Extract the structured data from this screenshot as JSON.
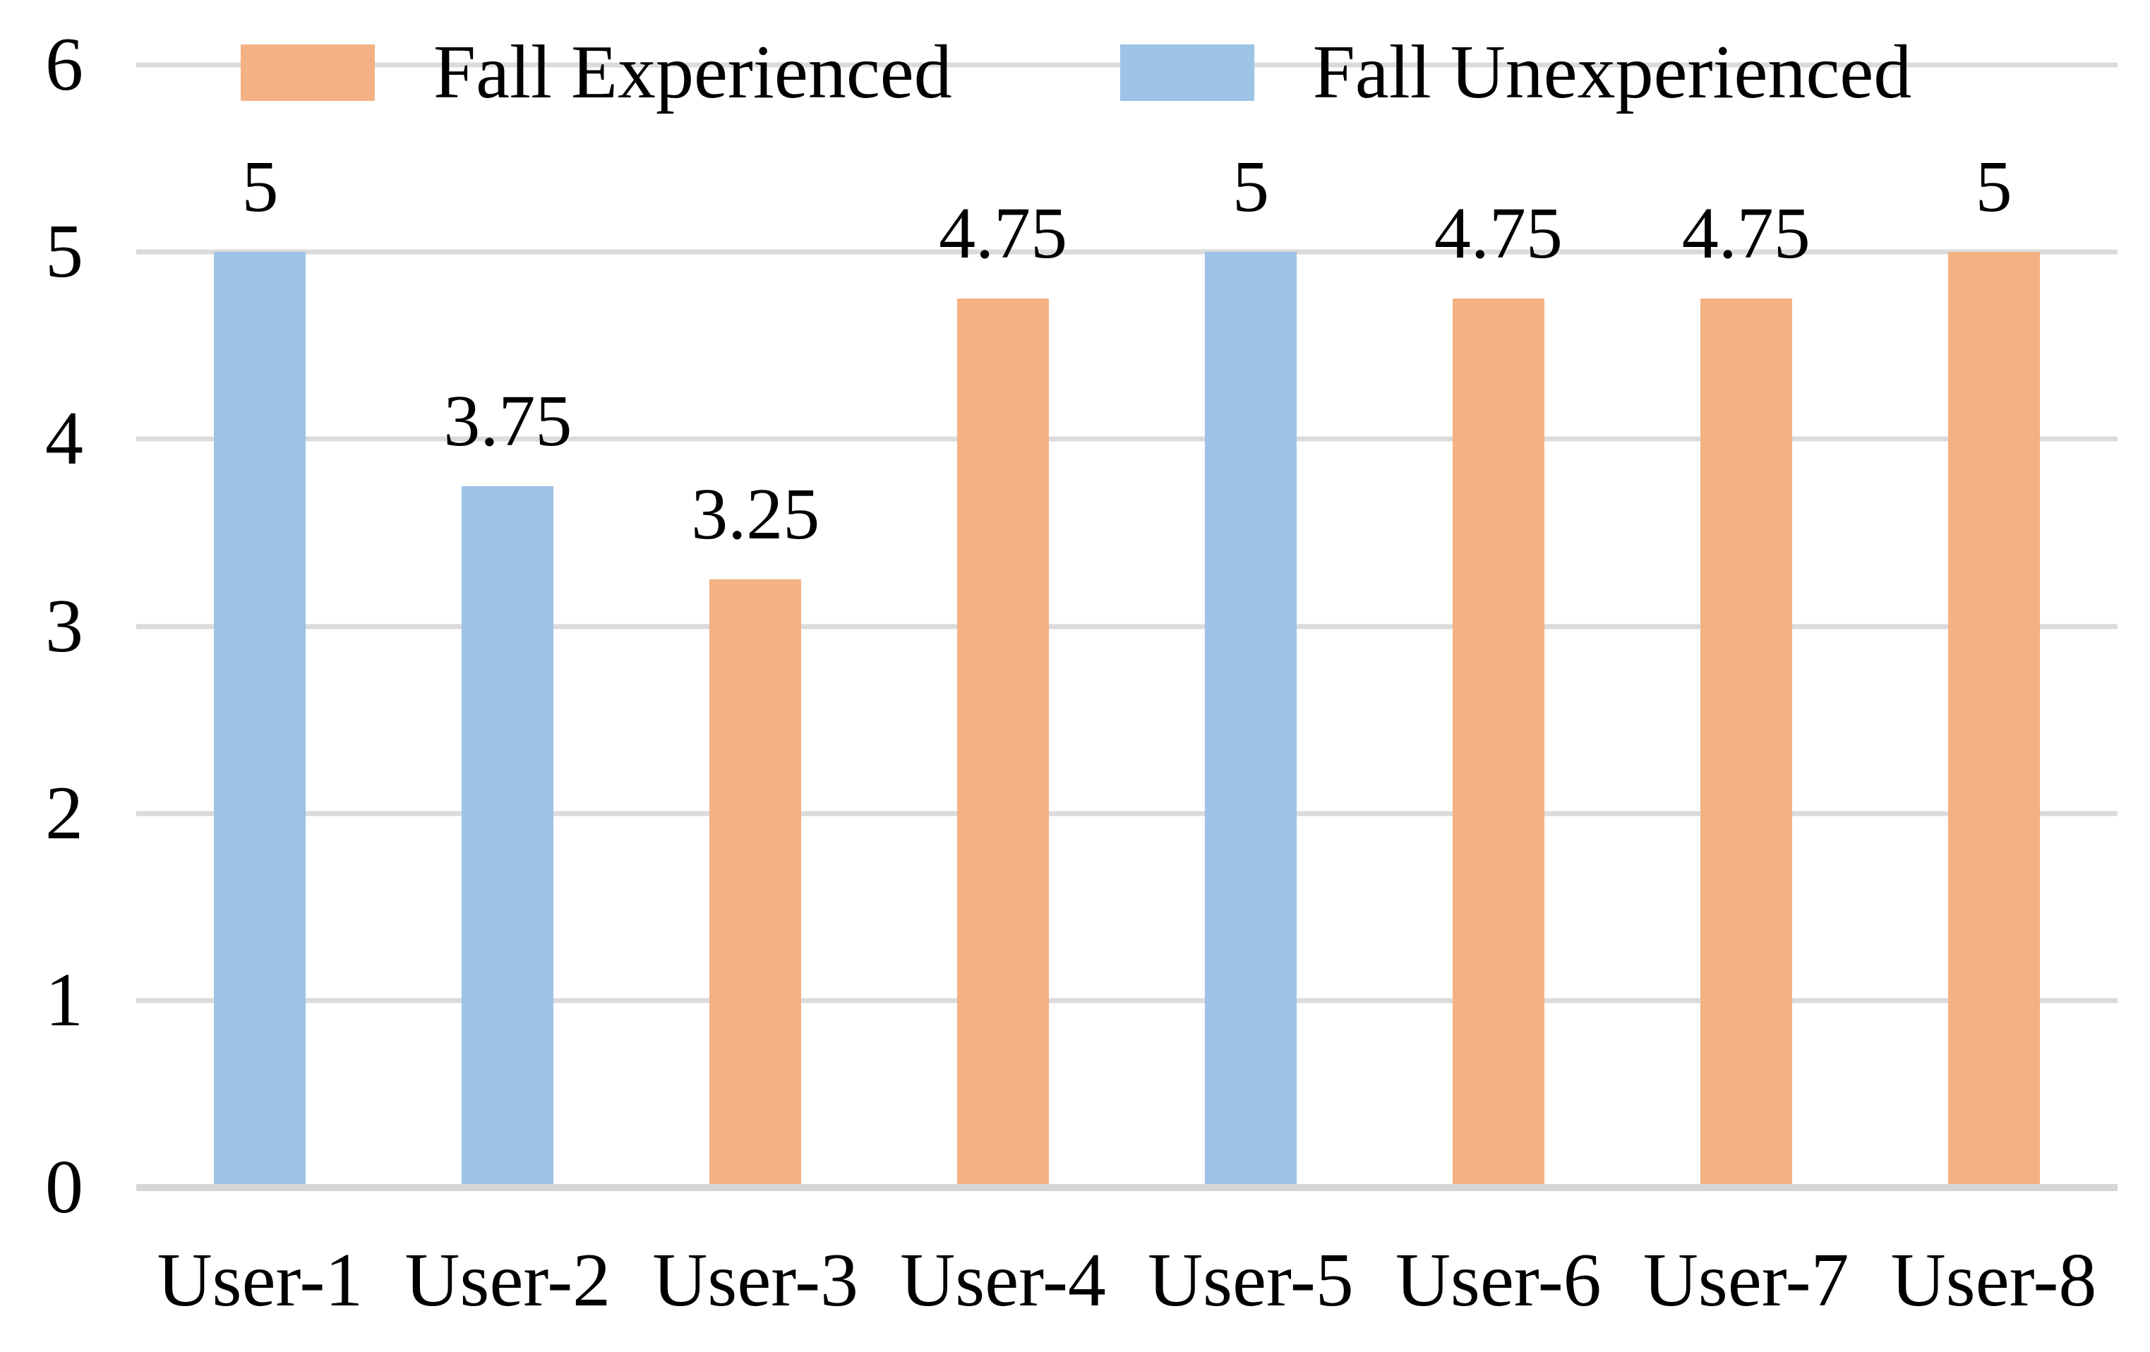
{
  "chart_data": {
    "type": "bar",
    "title": "",
    "xlabel": "",
    "ylabel": "",
    "categories": [
      "User-1",
      "User-2",
      "User-3",
      "User-4",
      "User-5",
      "User-6",
      "User-7",
      "User-8"
    ],
    "series": [
      {
        "name": "Fall Experienced",
        "color": "#F4B183",
        "values": [
          null,
          null,
          3.25,
          4.75,
          null,
          4.75,
          4.75,
          5
        ]
      },
      {
        "name": "Fall Unexperienced",
        "color": "#9DC3E6",
        "values": [
          5,
          3.75,
          null,
          null,
          5,
          null,
          null,
          null
        ]
      }
    ],
    "bars": [
      {
        "category": "User-1",
        "series": "Fall Unexperienced",
        "value": 5,
        "label": "5"
      },
      {
        "category": "User-2",
        "series": "Fall Unexperienced",
        "value": 3.75,
        "label": "3.75"
      },
      {
        "category": "User-3",
        "series": "Fall Experienced",
        "value": 3.25,
        "label": "3.25"
      },
      {
        "category": "User-4",
        "series": "Fall Experienced",
        "value": 4.75,
        "label": "4.75"
      },
      {
        "category": "User-5",
        "series": "Fall Unexperienced",
        "value": 5,
        "label": "5"
      },
      {
        "category": "User-6",
        "series": "Fall Experienced",
        "value": 4.75,
        "label": "4.75"
      },
      {
        "category": "User-7",
        "series": "Fall Experienced",
        "value": 4.75,
        "label": "4.75"
      },
      {
        "category": "User-8",
        "series": "Fall Experienced",
        "value": 5,
        "label": "5"
      }
    ],
    "ylim": [
      0,
      6
    ],
    "yticks": [
      "0",
      "1",
      "2",
      "3",
      "4",
      "5",
      "6"
    ],
    "grid": "horizontal",
    "legend_position": "top",
    "legend": [
      "Fall Experienced",
      "Fall Unexperienced"
    ],
    "colors": {
      "gridline": "#DBDBDB",
      "baseline": "#D6D6D6",
      "text": "#000000",
      "background": "#FFFFFF"
    }
  }
}
